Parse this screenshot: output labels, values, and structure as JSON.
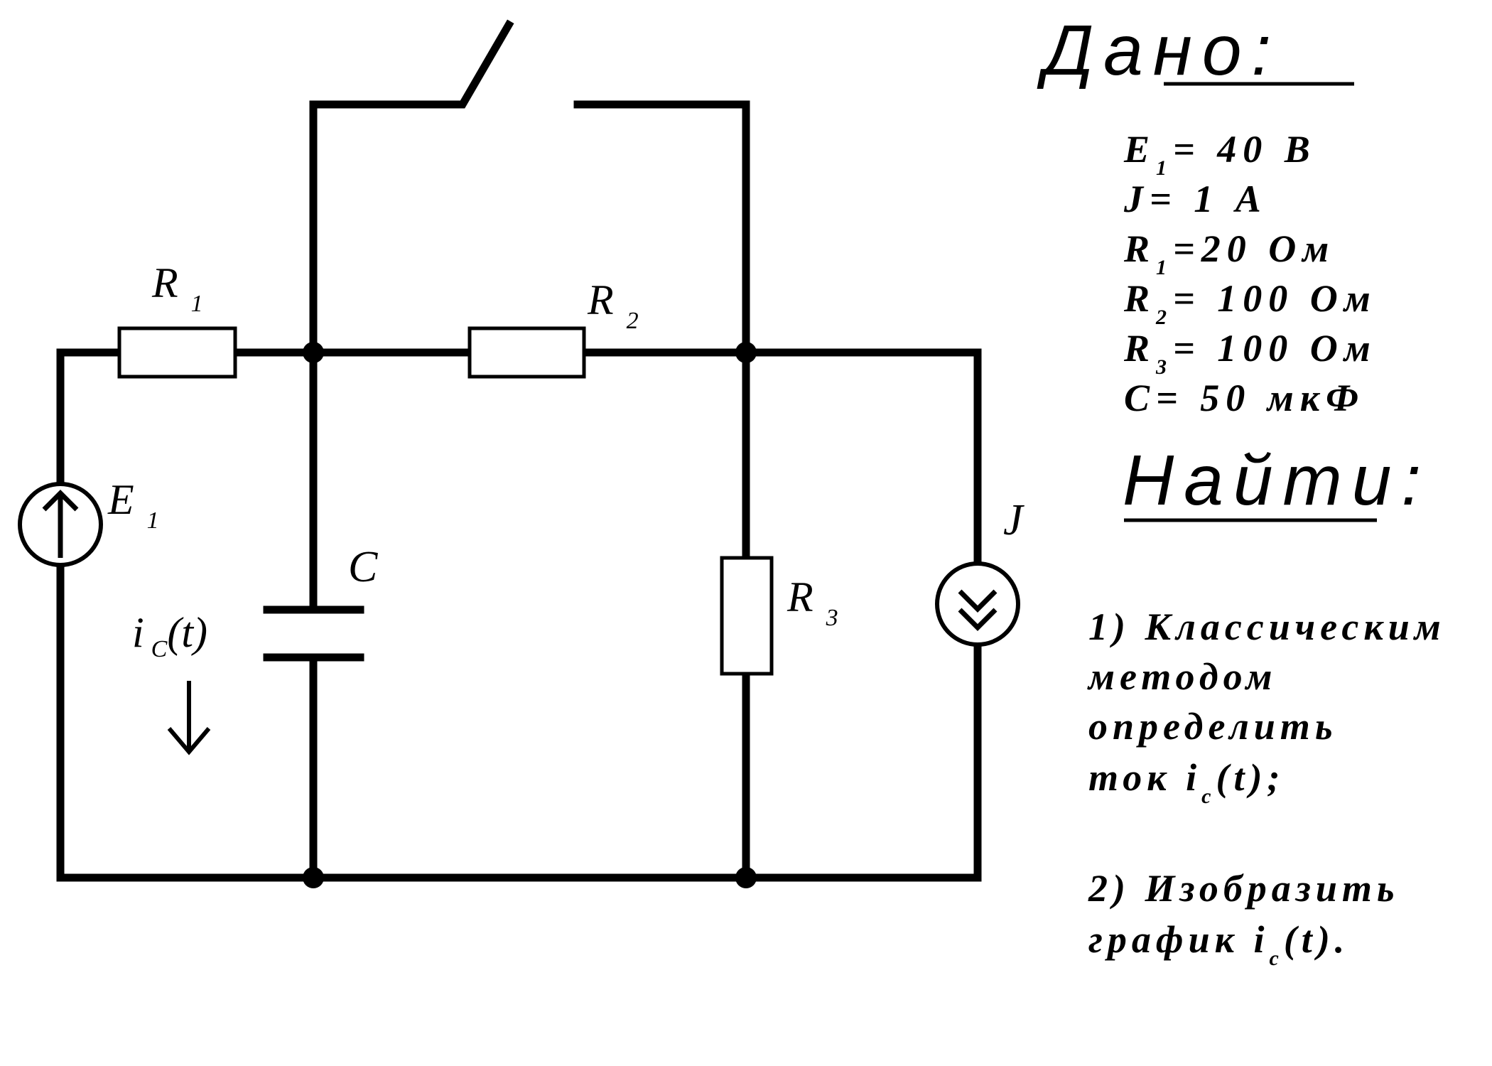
{
  "circuit": {
    "labels": {
      "r1": {
        "sym": "R",
        "sub": "1"
      },
      "r2": {
        "sym": "R",
        "sub": "2"
      },
      "r3": {
        "sym": "R",
        "sub": "3"
      },
      "e1": {
        "sym": "E",
        "sub": "1"
      },
      "c": {
        "sym": "C"
      },
      "j": {
        "sym": "J"
      },
      "ic": {
        "sym": "i",
        "sub": "C",
        "arg": "(t)"
      }
    }
  },
  "given": {
    "title": "Дано:",
    "lines": [
      {
        "sym": "E",
        "sub": "1",
        "value": "= 40 В"
      },
      {
        "sym": "J",
        "sub": "",
        "value": "= 1 А"
      },
      {
        "sym": "R",
        "sub": "1",
        "value": "=20 Ом"
      },
      {
        "sym": "R",
        "sub": "2",
        "value": "= 100 Ом"
      },
      {
        "sym": "R",
        "sub": "3",
        "value": "= 100 Ом"
      },
      {
        "sym": "C",
        "sub": "",
        "value": "= 50 мкФ"
      }
    ]
  },
  "find": {
    "title": "Найти:",
    "task1": [
      "1) Классическим",
      "методом",
      "определить",
      "ток i",
      "c",
      "(t);"
    ],
    "task2": [
      "2) Изобразить",
      "график i",
      "c",
      "(t)."
    ]
  }
}
